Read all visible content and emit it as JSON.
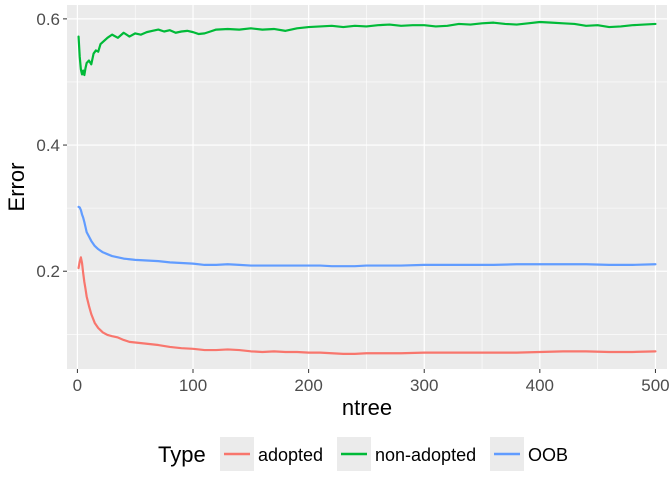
{
  "chart_data": {
    "type": "line",
    "xlabel": "ntree",
    "ylabel": "Error",
    "xlim": [
      -9,
      510
    ],
    "ylim": [
      0.045,
      0.622
    ],
    "x_ticks": [
      0,
      100,
      200,
      300,
      400,
      500
    ],
    "x_tick_labels": [
      "0",
      "100",
      "200",
      "300",
      "400",
      "500"
    ],
    "y_ticks": [
      0.2,
      0.4,
      0.6
    ],
    "y_tick_labels": [
      "0.2",
      "0.4",
      "0.6"
    ],
    "grid": true,
    "legend": {
      "title": "Type",
      "position": "bottom"
    },
    "series": [
      {
        "name": "adopted",
        "color": "#F8766D",
        "points": [
          [
            1,
            0.205
          ],
          [
            2,
            0.215
          ],
          [
            3,
            0.222
          ],
          [
            4,
            0.213
          ],
          [
            5,
            0.197
          ],
          [
            6,
            0.183
          ],
          [
            7,
            0.172
          ],
          [
            8,
            0.16
          ],
          [
            10,
            0.145
          ],
          [
            12,
            0.132
          ],
          [
            15,
            0.118
          ],
          [
            18,
            0.11
          ],
          [
            22,
            0.103
          ],
          [
            26,
            0.099
          ],
          [
            30,
            0.097
          ],
          [
            35,
            0.095
          ],
          [
            40,
            0.091
          ],
          [
            45,
            0.088
          ],
          [
            50,
            0.087
          ],
          [
            60,
            0.085
          ],
          [
            70,
            0.083
          ],
          [
            80,
            0.08
          ],
          [
            90,
            0.078
          ],
          [
            100,
            0.077
          ],
          [
            110,
            0.075
          ],
          [
            120,
            0.075
          ],
          [
            130,
            0.076
          ],
          [
            140,
            0.075
          ],
          [
            150,
            0.073
          ],
          [
            160,
            0.072
          ],
          [
            170,
            0.073
          ],
          [
            180,
            0.072
          ],
          [
            190,
            0.072
          ],
          [
            200,
            0.071
          ],
          [
            210,
            0.071
          ],
          [
            220,
            0.07
          ],
          [
            230,
            0.069
          ],
          [
            240,
            0.069
          ],
          [
            250,
            0.07
          ],
          [
            260,
            0.07
          ],
          [
            280,
            0.07
          ],
          [
            300,
            0.071
          ],
          [
            320,
            0.071
          ],
          [
            340,
            0.071
          ],
          [
            360,
            0.071
          ],
          [
            380,
            0.071
          ],
          [
            400,
            0.072
          ],
          [
            420,
            0.073
          ],
          [
            440,
            0.073
          ],
          [
            460,
            0.072
          ],
          [
            480,
            0.072
          ],
          [
            500,
            0.073
          ]
        ]
      },
      {
        "name": "non-adopted",
        "color": "#00BA38",
        "points": [
          [
            1,
            0.572
          ],
          [
            2,
            0.54
          ],
          [
            3,
            0.52
          ],
          [
            4,
            0.512
          ],
          [
            5,
            0.518
          ],
          [
            6,
            0.511
          ],
          [
            7,
            0.522
          ],
          [
            8,
            0.53
          ],
          [
            10,
            0.534
          ],
          [
            12,
            0.528
          ],
          [
            14,
            0.545
          ],
          [
            16,
            0.55
          ],
          [
            18,
            0.548
          ],
          [
            20,
            0.56
          ],
          [
            23,
            0.565
          ],
          [
            26,
            0.57
          ],
          [
            30,
            0.575
          ],
          [
            35,
            0.57
          ],
          [
            40,
            0.578
          ],
          [
            45,
            0.572
          ],
          [
            50,
            0.577
          ],
          [
            55,
            0.575
          ],
          [
            60,
            0.579
          ],
          [
            65,
            0.581
          ],
          [
            70,
            0.583
          ],
          [
            75,
            0.58
          ],
          [
            80,
            0.582
          ],
          [
            85,
            0.578
          ],
          [
            90,
            0.58
          ],
          [
            95,
            0.581
          ],
          [
            100,
            0.579
          ],
          [
            105,
            0.576
          ],
          [
            110,
            0.577
          ],
          [
            115,
            0.58
          ],
          [
            120,
            0.583
          ],
          [
            130,
            0.584
          ],
          [
            140,
            0.583
          ],
          [
            150,
            0.585
          ],
          [
            160,
            0.583
          ],
          [
            170,
            0.584
          ],
          [
            180,
            0.581
          ],
          [
            190,
            0.585
          ],
          [
            200,
            0.587
          ],
          [
            210,
            0.588
          ],
          [
            220,
            0.589
          ],
          [
            230,
            0.587
          ],
          [
            240,
            0.589
          ],
          [
            250,
            0.588
          ],
          [
            260,
            0.59
          ],
          [
            270,
            0.591
          ],
          [
            280,
            0.589
          ],
          [
            290,
            0.59
          ],
          [
            300,
            0.59
          ],
          [
            310,
            0.588
          ],
          [
            320,
            0.589
          ],
          [
            330,
            0.592
          ],
          [
            340,
            0.591
          ],
          [
            350,
            0.593
          ],
          [
            360,
            0.594
          ],
          [
            370,
            0.592
          ],
          [
            380,
            0.591
          ],
          [
            390,
            0.593
          ],
          [
            400,
            0.595
          ],
          [
            410,
            0.594
          ],
          [
            420,
            0.593
          ],
          [
            430,
            0.592
          ],
          [
            440,
            0.589
          ],
          [
            450,
            0.59
          ],
          [
            460,
            0.587
          ],
          [
            470,
            0.588
          ],
          [
            480,
            0.59
          ],
          [
            490,
            0.591
          ],
          [
            500,
            0.592
          ]
        ]
      },
      {
        "name": "OOB",
        "color": "#619CFF",
        "points": [
          [
            1,
            0.302
          ],
          [
            2,
            0.301
          ],
          [
            3,
            0.297
          ],
          [
            4,
            0.29
          ],
          [
            5,
            0.285
          ],
          [
            6,
            0.278
          ],
          [
            7,
            0.27
          ],
          [
            8,
            0.262
          ],
          [
            10,
            0.255
          ],
          [
            12,
            0.248
          ],
          [
            15,
            0.24
          ],
          [
            18,
            0.235
          ],
          [
            22,
            0.23
          ],
          [
            26,
            0.227
          ],
          [
            30,
            0.224
          ],
          [
            35,
            0.222
          ],
          [
            40,
            0.22
          ],
          [
            45,
            0.219
          ],
          [
            50,
            0.218
          ],
          [
            60,
            0.217
          ],
          [
            70,
            0.216
          ],
          [
            80,
            0.214
          ],
          [
            90,
            0.213
          ],
          [
            100,
            0.212
          ],
          [
            110,
            0.21
          ],
          [
            120,
            0.21
          ],
          [
            130,
            0.211
          ],
          [
            140,
            0.21
          ],
          [
            150,
            0.209
          ],
          [
            160,
            0.209
          ],
          [
            170,
            0.209
          ],
          [
            180,
            0.209
          ],
          [
            190,
            0.209
          ],
          [
            200,
            0.209
          ],
          [
            210,
            0.209
          ],
          [
            220,
            0.208
          ],
          [
            230,
            0.208
          ],
          [
            240,
            0.208
          ],
          [
            250,
            0.209
          ],
          [
            260,
            0.209
          ],
          [
            280,
            0.209
          ],
          [
            300,
            0.21
          ],
          [
            320,
            0.21
          ],
          [
            340,
            0.21
          ],
          [
            360,
            0.21
          ],
          [
            380,
            0.211
          ],
          [
            400,
            0.211
          ],
          [
            420,
            0.211
          ],
          [
            440,
            0.211
          ],
          [
            460,
            0.21
          ],
          [
            480,
            0.21
          ],
          [
            500,
            0.211
          ]
        ]
      }
    ]
  }
}
